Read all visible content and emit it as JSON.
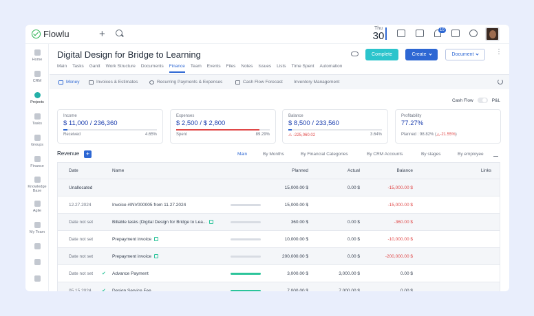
{
  "app": {
    "name": "Flowlu"
  },
  "topbar": {
    "date_dow": "Thu",
    "date_day": "30",
    "notification_count": "10"
  },
  "sidebar": [
    {
      "label": "Home",
      "active": false
    },
    {
      "label": "CRM",
      "active": false
    },
    {
      "label": "Projects",
      "active": true
    },
    {
      "label": "Tasks",
      "active": false
    },
    {
      "label": "Groups",
      "active": false
    },
    {
      "label": "Finance",
      "active": false
    },
    {
      "label": "Knowledge Base",
      "active": false
    },
    {
      "label": "Agile",
      "active": false
    },
    {
      "label": "My Team",
      "active": false
    },
    {
      "label": "",
      "active": false
    },
    {
      "label": "",
      "active": false
    },
    {
      "label": "",
      "active": false
    }
  ],
  "project": {
    "title": "Digital Design for Bridge to Learning",
    "buttons": {
      "complete": "Complete",
      "create": "Create",
      "document": "Document"
    },
    "tabs": [
      "Main",
      "Tasks",
      "Gantt",
      "Work Structure",
      "Documents",
      "Finance",
      "Team",
      "Events",
      "Files",
      "Notes",
      "Issues",
      "Lists",
      "Time Spent",
      "Automation"
    ],
    "active_tab": "Finance"
  },
  "subnav": [
    "Money",
    "Invoices & Estimates",
    "Recurring Payments & Expenses",
    "Cash Flow Forecast",
    "Inventory Management"
  ],
  "toggle": {
    "left": "Cash Flow",
    "right": "P&L"
  },
  "cards": {
    "income": {
      "label": "Income",
      "value": "$ 11,000 / 236,360",
      "foot_left": "Received",
      "foot_right": "4.65%",
      "progress": 0.0465,
      "color": "#2d67d3"
    },
    "expenses": {
      "label": "Expenses",
      "value": "$ 2,500 / $ 2,800",
      "foot_left": "Spent",
      "foot_right": "89.29%",
      "progress": 0.8929,
      "color": "#e04848"
    },
    "balance": {
      "label": "Balance",
      "value": "$ 8,500 / 233,560",
      "foot_left": "-225,060.02",
      "foot_right": "3.64%",
      "progress": 0.0364,
      "color": "#2d67d3"
    },
    "profitability": {
      "label": "Profitability",
      "value": "77.27%",
      "foot_left": "Planned : 98.82% (",
      "foot_neg": "-21.55%",
      "foot_close": ")"
    }
  },
  "revenue": {
    "label": "Revenue",
    "tabs": [
      "Main",
      "By Months",
      "By Financial Categories",
      "By CRM Accounts",
      "By stages",
      "By employee"
    ],
    "headers": {
      "date": "Date",
      "name": "Name",
      "planned": "Planned",
      "actual": "Actual",
      "balance": "Balance",
      "links": "Links"
    },
    "rows": [
      {
        "date": "Unallocated",
        "name": "",
        "planned": "15,000.00 $",
        "actual": "0.00 $",
        "balance": "-15,000.00 $",
        "progress": null
      },
      {
        "date": "12.27.2024",
        "name": "Invoice #INV000005 from 11.27.2024",
        "planned": "15,000.00 $",
        "actual": "",
        "balance": "-15,000.00 $",
        "progress": "pending"
      },
      {
        "date": "Date not set",
        "name": "Billable tasks (Digital Design for Bridge to Lea...",
        "planned": "360.00 $",
        "actual": "0.00 $",
        "balance": "-360.00 $",
        "progress": "pending"
      },
      {
        "date": "Date not set",
        "name": "Prepayment invoice",
        "planned": "10,000.00 $",
        "actual": "0.00 $",
        "balance": "-10,000.00 $",
        "progress": "pending"
      },
      {
        "date": "Date not set",
        "name": "Prepayment invoice",
        "planned": "200,000.00 $",
        "actual": "0.00 $",
        "balance": "-200,000.00 $",
        "progress": "pending"
      },
      {
        "date": "Date not set",
        "name": "Advance Payment",
        "planned": "3,000.00 $",
        "actual": "3,000.00 $",
        "balance": "0.00 $",
        "progress": "done"
      },
      {
        "date": "05.15.2024",
        "name": "Design Service Fee",
        "planned": "7,000.00 $",
        "actual": "7,000.00 $",
        "balance": "0.00 $",
        "progress": "done"
      }
    ]
  }
}
